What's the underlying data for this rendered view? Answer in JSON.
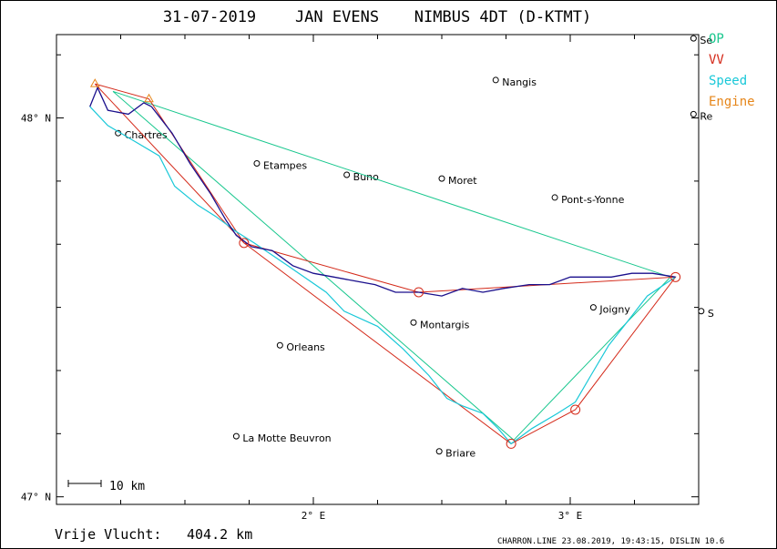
{
  "title": {
    "date": "31-07-2019",
    "pilot": "JAN EVENS",
    "glider": "NIMBUS 4DT (D-KTMT)"
  },
  "legend": [
    {
      "label": "OP",
      "color": "#19c78e"
    },
    {
      "label": "VV",
      "color": "#d42a1a"
    },
    {
      "label": "Speed",
      "color": "#19c8d8"
    },
    {
      "label": "Engine",
      "color": "#e6861a"
    }
  ],
  "axes": {
    "lat_ticks": [
      {
        "value": 48,
        "label": "48° N"
      },
      {
        "value": 47,
        "label": "47° N"
      }
    ],
    "lon_ticks": [
      {
        "value": 2,
        "label": "2° E"
      },
      {
        "value": 3,
        "label": "3° E"
      }
    ]
  },
  "scale_bar": {
    "label": "10 km"
  },
  "distance": {
    "label": "Vrije Vlucht:",
    "value": "404.2 km"
  },
  "footer": "CHARRON.LINE 23.08.2019, 19:43:15, DISLIN 10.6",
  "chart_data": {
    "type": "map",
    "lon_range": [
      1.0,
      3.5
    ],
    "lat_range": [
      46.98,
      48.22
    ],
    "towns": [
      {
        "name": "Chartres",
        "lon": 1.24,
        "lat": 47.96
      },
      {
        "name": "Etampes",
        "lon": 1.78,
        "lat": 47.88
      },
      {
        "name": "Buno",
        "lon": 2.13,
        "lat": 47.85
      },
      {
        "name": "Moret",
        "lon": 2.5,
        "lat": 47.84
      },
      {
        "name": "Nangis",
        "lon": 2.71,
        "lat": 48.1
      },
      {
        "name": "Pont-s-Yonne",
        "lon": 2.94,
        "lat": 47.79
      },
      {
        "name": "Joigny",
        "lon": 3.09,
        "lat": 47.5
      },
      {
        "name": "Montargis",
        "lon": 2.39,
        "lat": 47.46
      },
      {
        "name": "Orleans",
        "lon": 1.87,
        "lat": 47.4
      },
      {
        "name": "Briare",
        "lon": 2.49,
        "lat": 47.12
      },
      {
        "name": "La Motte Beuvron",
        "lon": 1.7,
        "lat": 47.16
      },
      {
        "name": "Se",
        "lon": 3.48,
        "lat": 48.21
      },
      {
        "name": "Re",
        "lon": 3.48,
        "lat": 48.01
      },
      {
        "name": "S",
        "lon": 3.51,
        "lat": 47.49
      }
    ],
    "op_triangle": [
      {
        "lon": 1.22,
        "lat": 48.07
      },
      {
        "lon": 3.39,
        "lat": 47.58
      },
      {
        "lon": 2.78,
        "lat": 47.15
      },
      {
        "lon": 1.22,
        "lat": 48.07
      }
    ],
    "vv_route": [
      {
        "lon": 1.15,
        "lat": 48.09
      },
      {
        "lon": 1.36,
        "lat": 48.05
      },
      {
        "lon": 1.73,
        "lat": 47.67
      },
      {
        "lon": 2.41,
        "lat": 47.54
      },
      {
        "lon": 3.41,
        "lat": 47.58
      },
      {
        "lon": 3.02,
        "lat": 47.23
      },
      {
        "lon": 2.77,
        "lat": 47.14
      },
      {
        "lon": 1.73,
        "lat": 47.67
      },
      {
        "lon": 1.15,
        "lat": 48.09
      }
    ],
    "turnpoints": [
      {
        "lon": 1.73,
        "lat": 47.67
      },
      {
        "lon": 2.41,
        "lat": 47.54
      },
      {
        "lon": 3.41,
        "lat": 47.58
      },
      {
        "lon": 3.02,
        "lat": 47.23
      },
      {
        "lon": 2.77,
        "lat": 47.14
      }
    ],
    "engine_markers": [
      {
        "lon": 1.15,
        "lat": 48.09
      },
      {
        "lon": 1.36,
        "lat": 48.05
      }
    ],
    "track_engine_leg": [
      {
        "lon": 1.13,
        "lat": 48.03
      },
      {
        "lon": 1.16,
        "lat": 48.08
      },
      {
        "lon": 1.2,
        "lat": 48.02
      },
      {
        "lon": 1.28,
        "lat": 48.01
      },
      {
        "lon": 1.34,
        "lat": 48.04
      },
      {
        "lon": 1.37,
        "lat": 48.03
      }
    ],
    "track_north": [
      {
        "lon": 1.37,
        "lat": 48.03
      },
      {
        "lon": 1.45,
        "lat": 47.96
      },
      {
        "lon": 1.52,
        "lat": 47.88
      },
      {
        "lon": 1.6,
        "lat": 47.8
      },
      {
        "lon": 1.66,
        "lat": 47.73
      },
      {
        "lon": 1.7,
        "lat": 47.69
      },
      {
        "lon": 1.76,
        "lat": 47.66
      },
      {
        "lon": 1.84,
        "lat": 47.65
      },
      {
        "lon": 1.92,
        "lat": 47.61
      },
      {
        "lon": 2.0,
        "lat": 47.59
      },
      {
        "lon": 2.08,
        "lat": 47.58
      },
      {
        "lon": 2.16,
        "lat": 47.57
      },
      {
        "lon": 2.24,
        "lat": 47.56
      },
      {
        "lon": 2.32,
        "lat": 47.54
      },
      {
        "lon": 2.41,
        "lat": 47.54
      },
      {
        "lon": 2.5,
        "lat": 47.53
      },
      {
        "lon": 2.58,
        "lat": 47.55
      },
      {
        "lon": 2.66,
        "lat": 47.54
      },
      {
        "lon": 2.74,
        "lat": 47.55
      },
      {
        "lon": 2.84,
        "lat": 47.56
      },
      {
        "lon": 2.92,
        "lat": 47.56
      },
      {
        "lon": 3.0,
        "lat": 47.58
      },
      {
        "lon": 3.08,
        "lat": 47.58
      },
      {
        "lon": 3.16,
        "lat": 47.58
      },
      {
        "lon": 3.24,
        "lat": 47.59
      },
      {
        "lon": 3.32,
        "lat": 47.59
      },
      {
        "lon": 3.41,
        "lat": 47.58
      }
    ],
    "track_south": [
      {
        "lon": 1.13,
        "lat": 48.03
      },
      {
        "lon": 1.2,
        "lat": 47.98
      },
      {
        "lon": 1.3,
        "lat": 47.94
      },
      {
        "lon": 1.4,
        "lat": 47.9
      },
      {
        "lon": 1.46,
        "lat": 47.82
      },
      {
        "lon": 1.55,
        "lat": 47.77
      },
      {
        "lon": 1.62,
        "lat": 47.74
      },
      {
        "lon": 1.7,
        "lat": 47.7
      },
      {
        "lon": 1.77,
        "lat": 47.67
      },
      {
        "lon": 1.9,
        "lat": 47.61
      },
      {
        "lon": 2.05,
        "lat": 47.54
      },
      {
        "lon": 2.12,
        "lat": 47.49
      },
      {
        "lon": 2.25,
        "lat": 47.45
      },
      {
        "lon": 2.35,
        "lat": 47.39
      },
      {
        "lon": 2.45,
        "lat": 47.32
      },
      {
        "lon": 2.52,
        "lat": 47.26
      },
      {
        "lon": 2.58,
        "lat": 47.24
      },
      {
        "lon": 2.66,
        "lat": 47.22
      },
      {
        "lon": 2.72,
        "lat": 47.18
      },
      {
        "lon": 2.77,
        "lat": 47.14
      },
      {
        "lon": 2.85,
        "lat": 47.18
      },
      {
        "lon": 2.95,
        "lat": 47.22
      },
      {
        "lon": 3.02,
        "lat": 47.25
      },
      {
        "lon": 3.08,
        "lat": 47.32
      },
      {
        "lon": 3.15,
        "lat": 47.4
      },
      {
        "lon": 3.22,
        "lat": 47.46
      },
      {
        "lon": 3.3,
        "lat": 47.53
      },
      {
        "lon": 3.41,
        "lat": 47.58
      }
    ]
  }
}
